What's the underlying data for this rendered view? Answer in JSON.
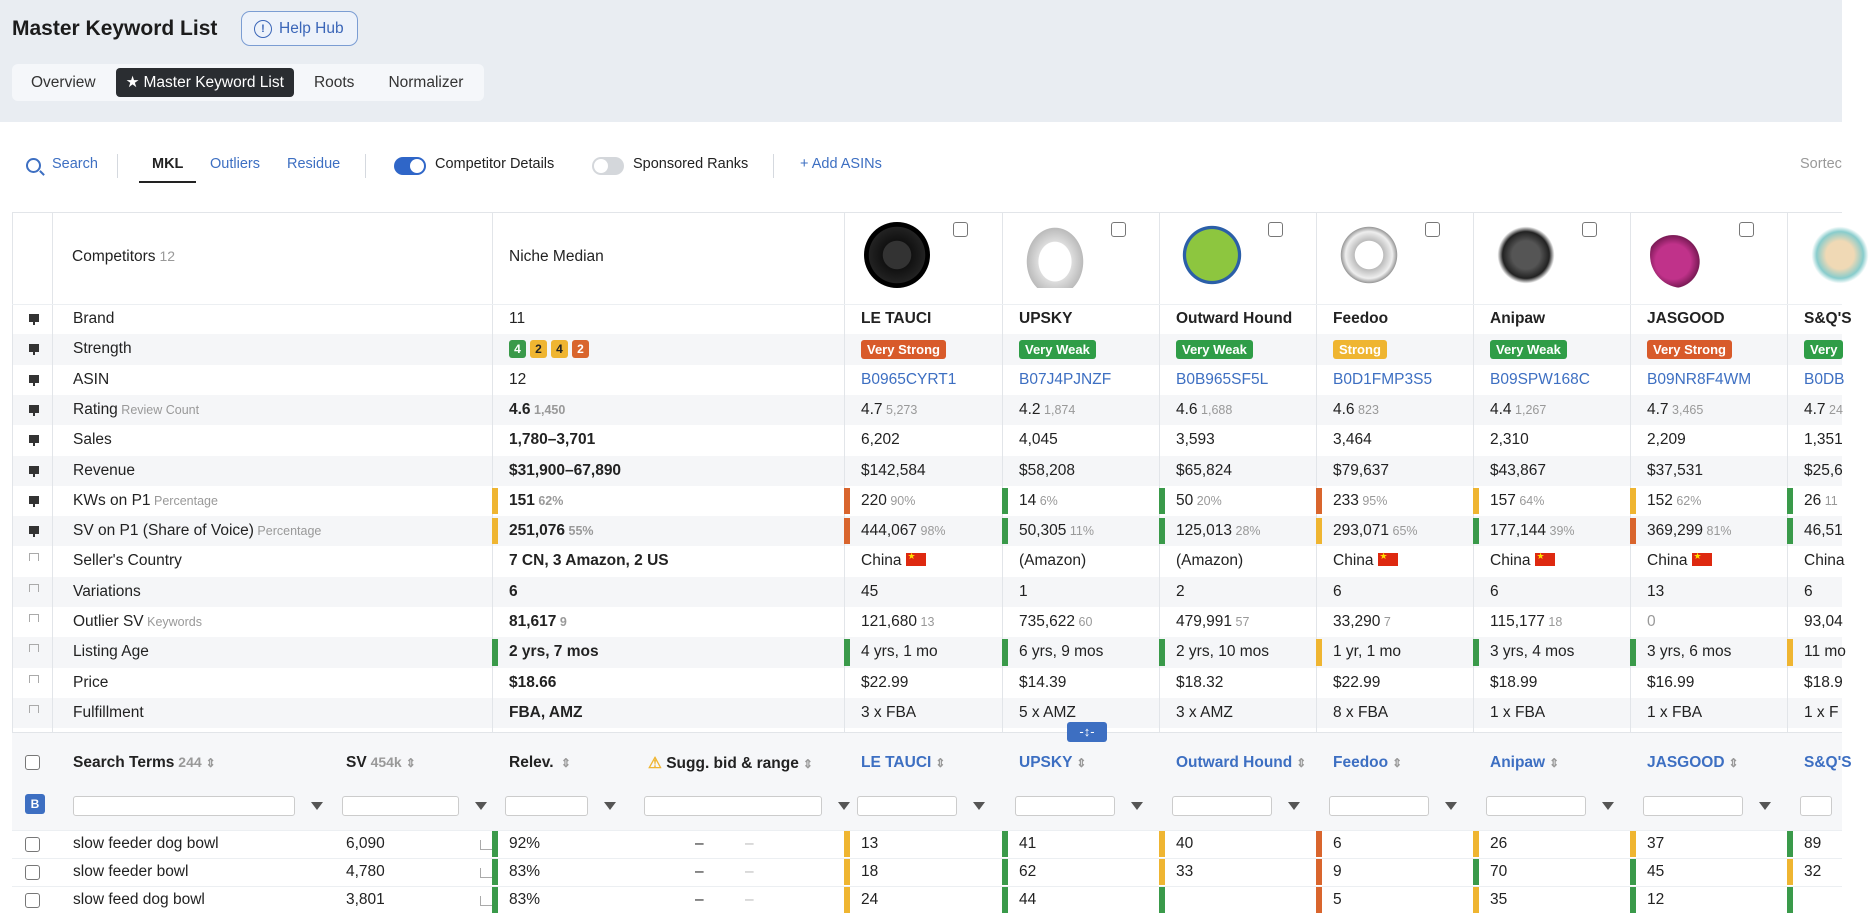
{
  "header": {
    "title": "Master Keyword List",
    "help_label": "Help Hub",
    "tabs": [
      "Overview",
      "Master Keyword List",
      "Roots",
      "Normalizer"
    ]
  },
  "toolbar": {
    "search": "Search",
    "views": [
      "MKL",
      "Outliers",
      "Residue"
    ],
    "competitor_details": "Competitor Details",
    "sponsored_ranks": "Sponsored Ranks",
    "add_asins": "Add ASINs",
    "sorted": "Sortec"
  },
  "competitors_header": {
    "label": "Competitors",
    "count": "12",
    "niche": "Niche Median"
  },
  "rows": [
    {
      "label": "Brand",
      "sub": "",
      "niche": "11",
      "niche_sub": ""
    },
    {
      "label": "Strength",
      "sub": "",
      "niche": "",
      "niche_sub": ""
    },
    {
      "label": "ASIN",
      "sub": "",
      "niche": "12",
      "niche_sub": ""
    },
    {
      "label": "Rating",
      "sub": "Review Count",
      "niche": "4.6",
      "niche_sub": "1,450"
    },
    {
      "label": "Sales",
      "sub": "",
      "niche": "1,780–3,701",
      "niche_sub": ""
    },
    {
      "label": "Revenue",
      "sub": "",
      "niche": "$31,900–67,890",
      "niche_sub": ""
    },
    {
      "label": "KWs on P1",
      "sub": "Percentage",
      "niche": "151",
      "niche_sub": "62%"
    },
    {
      "label": "SV on P1 (Share of Voice)",
      "sub": "Percentage",
      "niche": "251,076",
      "niche_sub": "55%"
    },
    {
      "label": "Seller's Country",
      "sub": "",
      "niche": "7 CN, 3 Amazon, 2 US",
      "niche_sub": ""
    },
    {
      "label": "Variations",
      "sub": "",
      "niche": "6",
      "niche_sub": ""
    },
    {
      "label": "Outlier SV",
      "sub": "Keywords",
      "niche": "81,617",
      "niche_sub": "9"
    },
    {
      "label": "Listing Age",
      "sub": "",
      "niche": "2 yrs, 7 mos",
      "niche_sub": ""
    },
    {
      "label": "Price",
      "sub": "",
      "niche": "$18.66",
      "niche_sub": ""
    },
    {
      "label": "Fulfillment",
      "sub": "",
      "niche": "FBA, AMZ",
      "niche_sub": ""
    }
  ],
  "niche_strength": [
    "4",
    "2",
    "4",
    "2"
  ],
  "competitors": [
    {
      "brand": "LE TAUCI",
      "strength": "Very Strong",
      "asin": "B0965CYRT1",
      "rating": "4.7",
      "reviews": "5,273",
      "sales": "6,202",
      "revenue": "$142,584",
      "kws": "220",
      "kws_pct": "90%",
      "sv": "444,067",
      "sv_pct": "98%",
      "country": "China",
      "variations": "45",
      "outlier": "121,680",
      "outlier_kw": "13",
      "age": "4 yrs, 1 mo",
      "price": "$22.99",
      "fulfill": "3 x FBA"
    },
    {
      "brand": "UPSKY",
      "strength": "Very Weak",
      "asin": "B07J4PJNZF",
      "rating": "4.2",
      "reviews": "1,874",
      "sales": "4,045",
      "revenue": "$58,208",
      "kws": "14",
      "kws_pct": "6%",
      "sv": "50,305",
      "sv_pct": "11%",
      "country": "(Amazon)",
      "variations": "1",
      "outlier": "735,622",
      "outlier_kw": "60",
      "age": "6 yrs, 9 mos",
      "price": "$14.39",
      "fulfill": "5 x AMZ"
    },
    {
      "brand": "Outward Hound",
      "strength": "Very Weak",
      "asin": "B0B965SF5L",
      "rating": "4.6",
      "reviews": "1,688",
      "sales": "3,593",
      "revenue": "$65,824",
      "kws": "50",
      "kws_pct": "20%",
      "sv": "125,013",
      "sv_pct": "28%",
      "country": "(Amazon)",
      "variations": "2",
      "outlier": "479,991",
      "outlier_kw": "57",
      "age": "2 yrs, 10 mos",
      "price": "$18.32",
      "fulfill": "3 x AMZ"
    },
    {
      "brand": "Feedoo",
      "strength": "Strong",
      "asin": "B0D1FMP3S5",
      "rating": "4.6",
      "reviews": "823",
      "sales": "3,464",
      "revenue": "$79,637",
      "kws": "233",
      "kws_pct": "95%",
      "sv": "293,071",
      "sv_pct": "65%",
      "country": "China",
      "variations": "6",
      "outlier": "33,290",
      "outlier_kw": "7",
      "age": "1 yr, 1 mo",
      "price": "$22.99",
      "fulfill": "8 x FBA"
    },
    {
      "brand": "Anipaw",
      "strength": "Very Weak",
      "asin": "B09SPW168C",
      "rating": "4.4",
      "reviews": "1,267",
      "sales": "2,310",
      "revenue": "$43,867",
      "kws": "157",
      "kws_pct": "64%",
      "sv": "177,144",
      "sv_pct": "39%",
      "country": "China",
      "variations": "6",
      "outlier": "115,177",
      "outlier_kw": "18",
      "age": "3 yrs, 4 mos",
      "price": "$18.99",
      "fulfill": "1 x FBA"
    },
    {
      "brand": "JASGOOD",
      "strength": "Very Strong",
      "asin": "B09NR8F4WM",
      "rating": "4.7",
      "reviews": "3,465",
      "sales": "2,209",
      "revenue": "$37,531",
      "kws": "152",
      "kws_pct": "62%",
      "sv": "369,299",
      "sv_pct": "81%",
      "country": "China",
      "variations": "13",
      "outlier": "0",
      "outlier_kw": "",
      "age": "3 yrs, 6 mos",
      "price": "$16.99",
      "fulfill": "1 x FBA"
    },
    {
      "brand": "S&Q'S",
      "strength": "Very",
      "asin": "B0DB",
      "rating": "4.7",
      "reviews": "24",
      "sales": "1,351",
      "revenue": "$25,6",
      "kws": "26",
      "kws_pct": "11",
      "sv": "46,51",
      "sv_pct": "",
      "country": "China",
      "variations": "6",
      "outlier": "93,04",
      "outlier_kw": "",
      "age": "11 mo",
      "price": "$18.9",
      "fulfill": "1 x F"
    }
  ],
  "search_terms": {
    "header_label": "Search Terms",
    "header_count": "244",
    "sv_label": "SV",
    "sv_total": "454k",
    "relev_label": "Relev.",
    "bid_label": "Sugg. bid & range",
    "b_label": "B",
    "resize_label": "-↕-",
    "rows": [
      {
        "term": "slow feeder dog bowl",
        "sv": "6,090",
        "relev": "92%",
        "bid": "–",
        "range": "–",
        "ranks": [
          "13",
          "41",
          "40",
          "6",
          "26",
          "37",
          "89"
        ]
      },
      {
        "term": "slow feeder bowl",
        "sv": "4,780",
        "relev": "83%",
        "bid": "–",
        "range": "–",
        "ranks": [
          "18",
          "62",
          "33",
          "9",
          "70",
          "45",
          "32"
        ]
      },
      {
        "term": "slow feed dog bowl",
        "sv": "3,801",
        "relev": "83%",
        "bid": "–",
        "range": "–",
        "ranks": [
          "24",
          "44",
          "",
          "5",
          "35",
          "12",
          ""
        ]
      }
    ]
  },
  "colors": {
    "accent": "#3d6fc2",
    "green": "#3a9a4a",
    "yellow": "#efb531",
    "orange": "#d9652d"
  }
}
